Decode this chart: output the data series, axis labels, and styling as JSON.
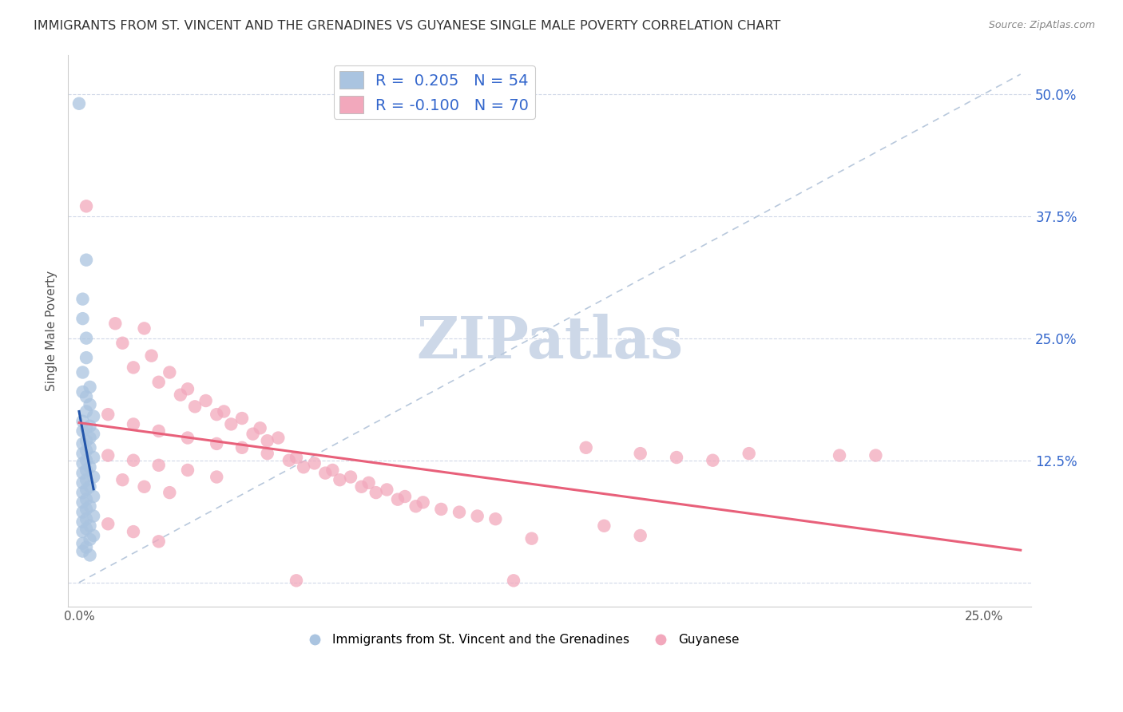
{
  "title": "IMMIGRANTS FROM ST. VINCENT AND THE GRENADINES VS GUYANESE SINGLE MALE POVERTY CORRELATION CHART",
  "source": "Source: ZipAtlas.com",
  "ylabel": "Single Male Poverty",
  "y_tick_values": [
    0.0,
    0.125,
    0.25,
    0.375,
    0.5
  ],
  "y_tick_labels": [
    "",
    "12.5%",
    "25.0%",
    "37.5%",
    "50.0%"
  ],
  "x_tick_values": [
    0.0,
    0.025,
    0.05,
    0.075,
    0.1,
    0.125,
    0.15,
    0.175,
    0.2,
    0.225,
    0.25
  ],
  "x_tick_labels": [
    "0.0%",
    "",
    "",
    "",
    "",
    "",
    "",
    "",
    "",
    "",
    "25.0%"
  ],
  "xlim": [
    -0.003,
    0.263
  ],
  "ylim": [
    -0.025,
    0.54
  ],
  "blue_R": "0.205",
  "blue_N": "54",
  "pink_R": "-0.100",
  "pink_N": "70",
  "blue_color": "#aac4e0",
  "pink_color": "#f2a8bc",
  "blue_line_color": "#2255aa",
  "pink_line_color": "#e8607a",
  "ref_line_color": "#b8c8dc",
  "legend_text_color": "#3366cc",
  "watermark_color": "#cdd8e8",
  "background_color": "#ffffff",
  "blue_scatter": [
    [
      0.0,
      0.49
    ],
    [
      0.002,
      0.33
    ],
    [
      0.001,
      0.29
    ],
    [
      0.001,
      0.27
    ],
    [
      0.002,
      0.25
    ],
    [
      0.002,
      0.23
    ],
    [
      0.001,
      0.215
    ],
    [
      0.003,
      0.2
    ],
    [
      0.001,
      0.195
    ],
    [
      0.002,
      0.19
    ],
    [
      0.003,
      0.182
    ],
    [
      0.002,
      0.175
    ],
    [
      0.004,
      0.17
    ],
    [
      0.001,
      0.165
    ],
    [
      0.003,
      0.16
    ],
    [
      0.002,
      0.158
    ],
    [
      0.001,
      0.155
    ],
    [
      0.004,
      0.152
    ],
    [
      0.003,
      0.148
    ],
    [
      0.002,
      0.145
    ],
    [
      0.001,
      0.142
    ],
    [
      0.003,
      0.138
    ],
    [
      0.002,
      0.135
    ],
    [
      0.001,
      0.132
    ],
    [
      0.004,
      0.128
    ],
    [
      0.002,
      0.125
    ],
    [
      0.001,
      0.122
    ],
    [
      0.003,
      0.118
    ],
    [
      0.002,
      0.115
    ],
    [
      0.001,
      0.112
    ],
    [
      0.004,
      0.108
    ],
    [
      0.002,
      0.105
    ],
    [
      0.001,
      0.102
    ],
    [
      0.003,
      0.098
    ],
    [
      0.002,
      0.095
    ],
    [
      0.001,
      0.092
    ],
    [
      0.004,
      0.088
    ],
    [
      0.002,
      0.085
    ],
    [
      0.001,
      0.082
    ],
    [
      0.003,
      0.078
    ],
    [
      0.002,
      0.075
    ],
    [
      0.001,
      0.072
    ],
    [
      0.004,
      0.068
    ],
    [
      0.002,
      0.065
    ],
    [
      0.001,
      0.062
    ],
    [
      0.003,
      0.058
    ],
    [
      0.002,
      0.055
    ],
    [
      0.001,
      0.052
    ],
    [
      0.004,
      0.048
    ],
    [
      0.003,
      0.044
    ],
    [
      0.001,
      0.04
    ],
    [
      0.002,
      0.036
    ],
    [
      0.001,
      0.032
    ],
    [
      0.003,
      0.028
    ]
  ],
  "pink_scatter": [
    [
      0.002,
      0.385
    ],
    [
      0.01,
      0.265
    ],
    [
      0.018,
      0.26
    ],
    [
      0.012,
      0.245
    ],
    [
      0.02,
      0.232
    ],
    [
      0.015,
      0.22
    ],
    [
      0.025,
      0.215
    ],
    [
      0.022,
      0.205
    ],
    [
      0.03,
      0.198
    ],
    [
      0.028,
      0.192
    ],
    [
      0.035,
      0.186
    ],
    [
      0.032,
      0.18
    ],
    [
      0.04,
      0.175
    ],
    [
      0.038,
      0.172
    ],
    [
      0.045,
      0.168
    ],
    [
      0.042,
      0.162
    ],
    [
      0.05,
      0.158
    ],
    [
      0.048,
      0.152
    ],
    [
      0.055,
      0.148
    ],
    [
      0.052,
      0.145
    ],
    [
      0.008,
      0.172
    ],
    [
      0.015,
      0.162
    ],
    [
      0.022,
      0.155
    ],
    [
      0.03,
      0.148
    ],
    [
      0.038,
      0.142
    ],
    [
      0.045,
      0.138
    ],
    [
      0.052,
      0.132
    ],
    [
      0.06,
      0.128
    ],
    [
      0.058,
      0.125
    ],
    [
      0.065,
      0.122
    ],
    [
      0.062,
      0.118
    ],
    [
      0.07,
      0.115
    ],
    [
      0.068,
      0.112
    ],
    [
      0.075,
      0.108
    ],
    [
      0.072,
      0.105
    ],
    [
      0.08,
      0.102
    ],
    [
      0.078,
      0.098
    ],
    [
      0.085,
      0.095
    ],
    [
      0.082,
      0.092
    ],
    [
      0.09,
      0.088
    ],
    [
      0.088,
      0.085
    ],
    [
      0.008,
      0.13
    ],
    [
      0.015,
      0.125
    ],
    [
      0.022,
      0.12
    ],
    [
      0.03,
      0.115
    ],
    [
      0.038,
      0.108
    ],
    [
      0.095,
      0.082
    ],
    [
      0.093,
      0.078
    ],
    [
      0.1,
      0.075
    ],
    [
      0.105,
      0.072
    ],
    [
      0.11,
      0.068
    ],
    [
      0.115,
      0.065
    ],
    [
      0.14,
      0.138
    ],
    [
      0.155,
      0.132
    ],
    [
      0.165,
      0.128
    ],
    [
      0.175,
      0.125
    ],
    [
      0.185,
      0.132
    ],
    [
      0.145,
      0.058
    ],
    [
      0.155,
      0.048
    ],
    [
      0.21,
      0.13
    ],
    [
      0.22,
      0.13
    ],
    [
      0.125,
      0.045
    ],
    [
      0.12,
      0.002
    ],
    [
      0.06,
      0.002
    ],
    [
      0.012,
      0.105
    ],
    [
      0.018,
      0.098
    ],
    [
      0.025,
      0.092
    ],
    [
      0.008,
      0.06
    ],
    [
      0.015,
      0.052
    ],
    [
      0.022,
      0.042
    ]
  ]
}
